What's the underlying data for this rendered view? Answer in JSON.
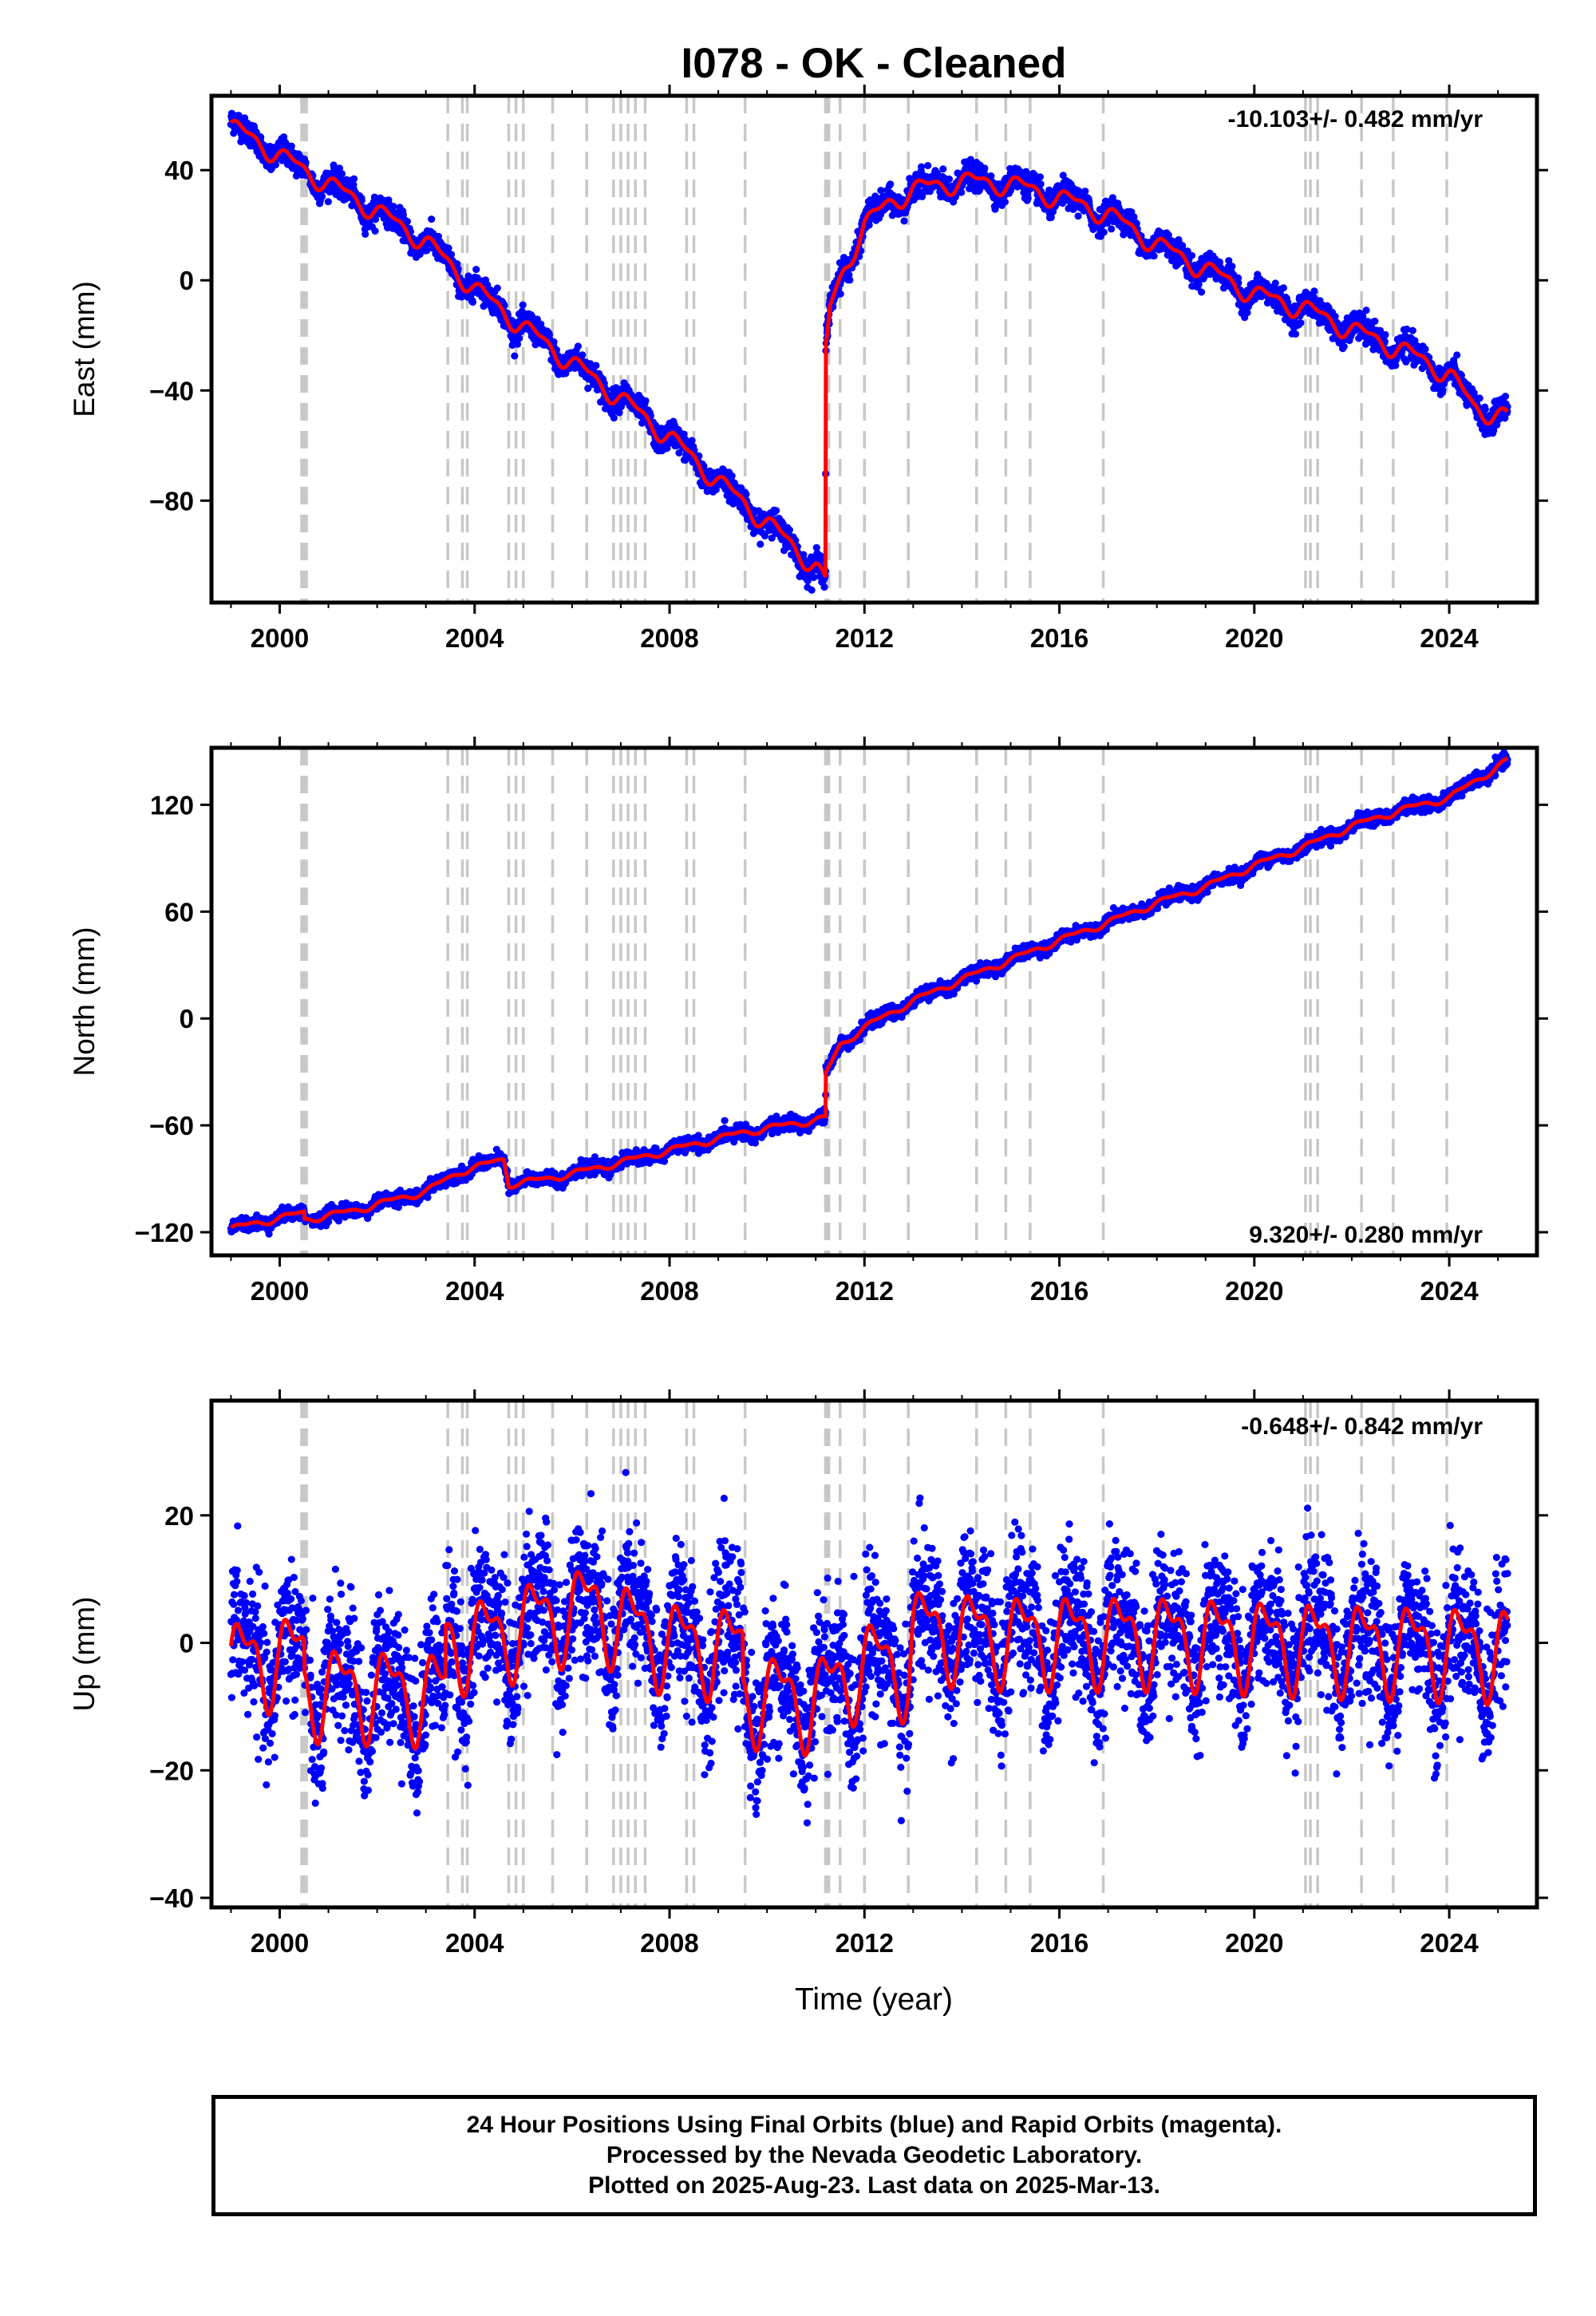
{
  "title": "I078  - OK - Cleaned",
  "x_label": "Time (year)",
  "footer": {
    "line1": "24 Hour Positions Using Final Orbits (blue) and Rapid Orbits (magenta).",
    "line2": "Processed by the Nevada Geodetic Laboratory.",
    "line3": "Plotted on 2025-Aug-23. Last data on 2025-Mar-13."
  },
  "colors": {
    "data": "#0000ff",
    "model": "#ff0000",
    "steps": "#c8c8c8"
  },
  "chart_data": [
    {
      "type": "scatter",
      "ylabel": "East (mm)",
      "rate_label": "-10.103+/- 0.482 mm/yr",
      "xlim": [
        1998.6,
        2025.8
      ],
      "ylim": [
        -117,
        67
      ],
      "yticks": [
        40,
        0,
        -40,
        -80
      ],
      "ytick_labels": [
        "40",
        "0",
        "−40",
        "−80"
      ],
      "xticks": [
        2000,
        2004,
        2008,
        2012,
        2016,
        2020,
        2024
      ],
      "step_epochs": [
        2000.45,
        2000.48,
        2000.52,
        2000.55,
        2003.45,
        2003.75,
        2003.85,
        2004.7,
        2004.85,
        2005.0,
        2005.6,
        2006.3,
        2006.85,
        2007.0,
        2007.15,
        2007.3,
        2007.5,
        2008.35,
        2008.5,
        2009.55,
        2011.2,
        2011.23,
        2011.27,
        2011.5,
        2012.0,
        2012.9,
        2014.3,
        2014.9,
        2015.4,
        2016.9,
        2021.05,
        2021.15,
        2021.3,
        2022.2,
        2022.85,
        2023.95
      ],
      "model_trend": [
        [
          1999.0,
          56
        ],
        [
          2000.5,
          40
        ],
        [
          2002.0,
          25
        ],
        [
          2003.0,
          14
        ],
        [
          2004.0,
          -3
        ],
        [
          2005.0,
          -17
        ],
        [
          2006.0,
          -30
        ],
        [
          2007.0,
          -43
        ],
        [
          2008.0,
          -57
        ],
        [
          2009.0,
          -73
        ],
        [
          2010.0,
          -88
        ],
        [
          2011.0,
          -104
        ],
        [
          2011.2,
          -110
        ],
        [
          2011.21,
          -25
        ],
        [
          2011.3,
          -10
        ],
        [
          2011.6,
          5
        ],
        [
          2012.0,
          20
        ],
        [
          2012.5,
          28
        ],
        [
          2013.0,
          33
        ],
        [
          2014.0,
          36
        ],
        [
          2015.0,
          35
        ],
        [
          2016.0,
          30
        ],
        [
          2017.0,
          24
        ],
        [
          2018.0,
          13
        ],
        [
          2019.0,
          4
        ],
        [
          2020.0,
          -5
        ],
        [
          2021.0,
          -10
        ],
        [
          2022.0,
          -18
        ],
        [
          2023.0,
          -25
        ],
        [
          2024.0,
          -34
        ],
        [
          2024.5,
          -46
        ],
        [
          2025.2,
          -50
        ]
      ],
      "model_amplitude": 3,
      "scatter_noise": 2.2
    },
    {
      "type": "scatter",
      "ylabel": "North (mm)",
      "rate_label": "9.320+/- 0.280 mm/yr",
      "xlim": [
        1998.6,
        2025.8
      ],
      "ylim": [
        -133,
        152
      ],
      "yticks": [
        120,
        60,
        0,
        -60,
        -120
      ],
      "ytick_labels": [
        "120",
        "60",
        "0",
        "−60",
        "−120"
      ],
      "xticks": [
        2000,
        2004,
        2008,
        2012,
        2016,
        2020,
        2024
      ],
      "step_epochs": [
        2000.45,
        2000.48,
        2000.52,
        2000.55,
        2003.45,
        2003.75,
        2003.85,
        2004.7,
        2004.85,
        2005.0,
        2005.6,
        2006.3,
        2006.85,
        2007.0,
        2007.15,
        2007.3,
        2007.5,
        2008.35,
        2008.5,
        2009.55,
        2011.2,
        2011.23,
        2011.27,
        2011.5,
        2012.0,
        2012.9,
        2014.3,
        2014.9,
        2015.4,
        2016.9,
        2021.05,
        2021.15,
        2021.3,
        2022.2,
        2022.85,
        2023.95
      ],
      "model_trend": [
        [
          1999.0,
          -118
        ],
        [
          2000.5,
          -109
        ],
        [
          2000.51,
          -113
        ],
        [
          2001.5,
          -108
        ],
        [
          2003.0,
          -97
        ],
        [
          2003.7,
          -86
        ],
        [
          2004.6,
          -79
        ],
        [
          2004.7,
          -93
        ],
        [
          2005.5,
          -90
        ],
        [
          2006.5,
          -84
        ],
        [
          2008.0,
          -74
        ],
        [
          2009.5,
          -64
        ],
        [
          2011.2,
          -56
        ],
        [
          2011.21,
          -31
        ],
        [
          2011.5,
          -15
        ],
        [
          2012.0,
          -5
        ],
        [
          2013.0,
          10
        ],
        [
          2014.0,
          22
        ],
        [
          2015.0,
          33
        ],
        [
          2016.0,
          44
        ],
        [
          2017.0,
          54
        ],
        [
          2018.0,
          65
        ],
        [
          2019.0,
          74
        ],
        [
          2020.0,
          86
        ],
        [
          2021.0,
          96
        ],
        [
          2022.0,
          108
        ],
        [
          2023.0,
          117
        ],
        [
          2024.0,
          124
        ],
        [
          2025.2,
          145
        ]
      ],
      "model_amplitude": 1.5,
      "scatter_noise": 1.8
    },
    {
      "type": "scatter",
      "ylabel": "Up (mm)",
      "rate_label": "-0.648+/- 0.842 mm/yr",
      "xlim": [
        1998.6,
        2025.8
      ],
      "ylim": [
        -41.5,
        38
      ],
      "yticks": [
        20,
        0,
        -20,
        -40
      ],
      "ytick_labels": [
        "20",
        "0",
        "−20",
        "−40"
      ],
      "xticks": [
        2000,
        2004,
        2008,
        2012,
        2016,
        2020,
        2024
      ],
      "step_epochs": [
        2000.45,
        2000.48,
        2000.52,
        2000.55,
        2003.45,
        2003.75,
        2003.85,
        2004.7,
        2004.85,
        2005.0,
        2005.6,
        2006.3,
        2006.85,
        2007.0,
        2007.15,
        2007.3,
        2007.5,
        2008.35,
        2008.5,
        2009.55,
        2011.2,
        2011.23,
        2011.27,
        2011.5,
        2012.0,
        2012.9,
        2014.3,
        2014.9,
        2015.4,
        2016.9,
        2021.05,
        2021.15,
        2021.3,
        2022.2,
        2022.85,
        2023.95
      ],
      "model_trend": [
        [
          1999.0,
          -3
        ],
        [
          2000.5,
          -2
        ],
        [
          2000.51,
          -7
        ],
        [
          2003.4,
          -8
        ],
        [
          2003.41,
          0
        ],
        [
          2004.5,
          1
        ],
        [
          2005.0,
          3
        ],
        [
          2006.5,
          6
        ],
        [
          2007.0,
          3
        ],
        [
          2008.0,
          0
        ],
        [
          2009.5,
          -1
        ],
        [
          2009.51,
          -8
        ],
        [
          2011.0,
          -9
        ],
        [
          2012.0,
          -3
        ],
        [
          2012.9,
          -4
        ],
        [
          2013.0,
          2
        ],
        [
          2015.0,
          1
        ],
        [
          2018.0,
          1
        ],
        [
          2021.0,
          0
        ],
        [
          2025.2,
          -1
        ]
      ],
      "model_amplitude": 6,
      "scatter_noise": 5.5
    }
  ]
}
